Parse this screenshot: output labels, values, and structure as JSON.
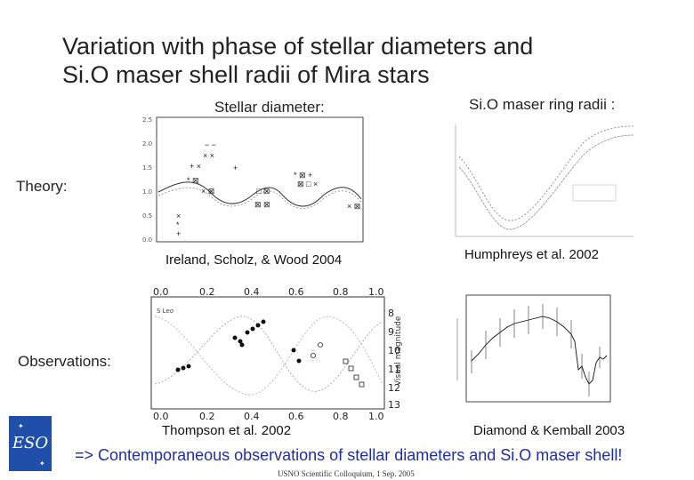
{
  "slide": {
    "title": "Variation with phase of stellar diameters and\nSi.O maser shell radii of Mira stars",
    "labels": {
      "stellar_diameter": "Stellar diameter:",
      "sio_ring": "Si.O maser ring radii :",
      "theory": "Theory:",
      "observations": "Observations:"
    },
    "captions": {
      "ireland": "Ireland, Scholz, & Wood 2004",
      "humphreys": "Humphreys et al. 2002",
      "thompson": "Thompson et al. 2002",
      "diamond": "Diamond & Kemball 2003"
    },
    "conclusion": "=> Contemporaneous observations of stellar diameters and Si.O maser shell!",
    "footer": "USNO Scientific Colloquium, 1 Sep. 2005",
    "logo_text": "ESO",
    "colors": {
      "conclusion": "#1f2f9f",
      "logo": "#1f4fa8"
    }
  },
  "panels": {
    "theory_diameter": {
      "y_ticks": [
        "2.5",
        "2.0",
        "1.5",
        "1.0",
        "0.5",
        "0.0"
      ]
    },
    "observations_thompson": {
      "x_ticks": [
        "0.0",
        "0.2",
        "0.4",
        "0.6",
        "0.8",
        "1.0"
      ],
      "right_ticks": [
        "8",
        "9",
        "10",
        "11",
        "12",
        "13"
      ],
      "right_axis_label": "Visual magnitude",
      "legend": "S Leo"
    }
  }
}
